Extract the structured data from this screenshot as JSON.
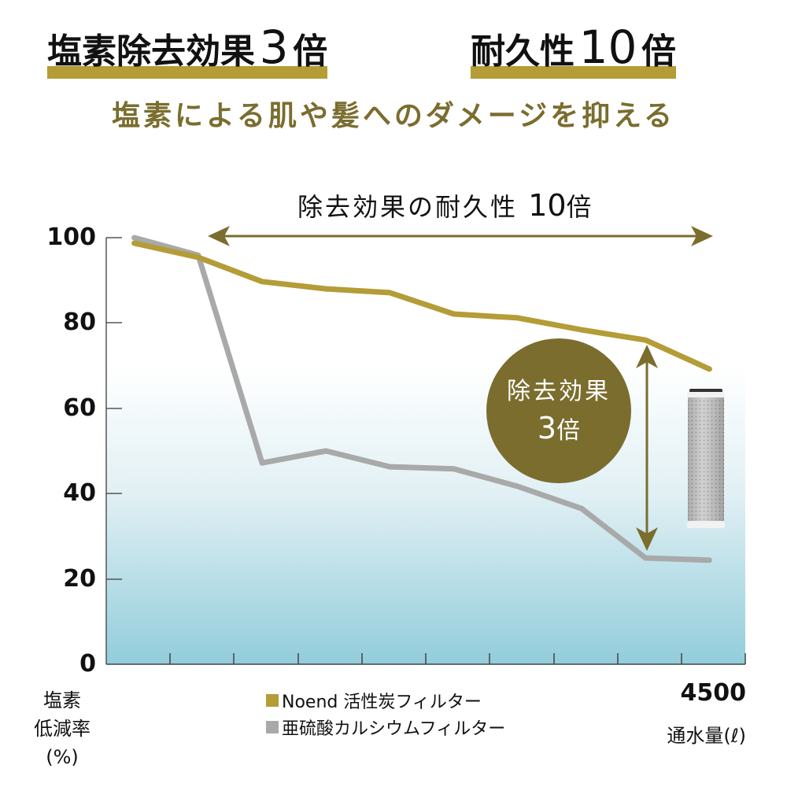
{
  "headline": {
    "left": {
      "text": "塩素除去効果",
      "number": "3",
      "unit": "倍"
    },
    "right": {
      "text": "耐久性",
      "number": "10",
      "unit": "倍"
    },
    "underline_color": "#b49c37"
  },
  "subtitle": "塩素による肌や髪へのダメージを抑える",
  "annotations": {
    "durability": {
      "text": "除去効果の耐久性",
      "number": "10",
      "unit": "倍"
    },
    "badge": {
      "line1": "除去効果",
      "number": "3",
      "unit": "倍"
    }
  },
  "axes": {
    "y_ticks": [
      "100",
      "80",
      "60",
      "40",
      "20",
      "0"
    ],
    "y_label_lines": [
      "塩素",
      "低減率",
      "(%)"
    ],
    "x_max_label": "4500",
    "x_label": "通水量(ℓ)"
  },
  "legend": [
    {
      "label": "Noend 活性炭フィルター",
      "color": "#b49c37"
    },
    {
      "label": "亜硫酸カルシウムフィルター",
      "color": "#a9a9a9"
    }
  ],
  "colors": {
    "gold": "#b49c37",
    "olive": "#7a6d2e",
    "gray": "#a9a9a9",
    "bg_top": "#ffffff",
    "bg_bottom": "#92cddb",
    "axis": "#555555"
  },
  "chart_data": {
    "type": "line",
    "title": "除去効果の耐久性 10倍",
    "xlabel": "通水量(ℓ)",
    "ylabel": "塩素低減率(%)",
    "ylim": [
      0,
      100
    ],
    "xlim": [
      0,
      4500
    ],
    "y_ticks": [
      0,
      20,
      40,
      60,
      80,
      100
    ],
    "x_ticks": [
      0,
      450,
      900,
      1350,
      1800,
      2250,
      2700,
      3150,
      3600,
      4050,
      4500
    ],
    "x": [
      225,
      675,
      1125,
      1575,
      2025,
      2475,
      2925,
      3375,
      3825,
      4275
    ],
    "series": [
      {
        "name": "Noend 活性炭フィルター",
        "color": "#b49c37",
        "values": [
          98.7,
          95.4,
          89.7,
          88.0,
          87.1,
          82.1,
          81.2,
          78.4,
          76.0,
          69.2
        ]
      },
      {
        "name": "亜硫酸カルシウムフィルター",
        "color": "#a9a9a9",
        "values": [
          100.0,
          95.9,
          47.2,
          50.0,
          46.3,
          45.8,
          41.7,
          36.5,
          24.9,
          24.4
        ]
      }
    ],
    "annotations": [
      "除去効果の耐久性 10倍",
      "除去効果 3倍"
    ],
    "grid": false,
    "legend_position": "bottom"
  }
}
